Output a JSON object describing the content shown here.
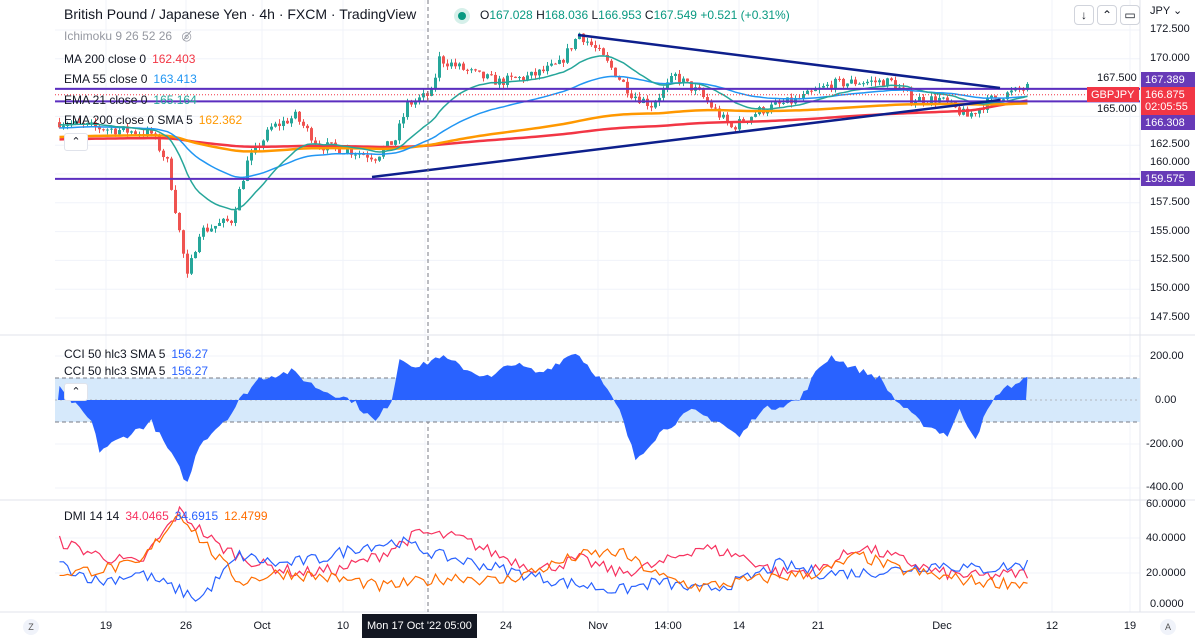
{
  "header": {
    "title": "British Pound / Japanese Yen · 4h · FXCM · TradingView",
    "open_label": "O",
    "open": "167.028",
    "high_label": "H",
    "high": "168.036",
    "low_label": "L",
    "low": "166.953",
    "close_label": "C",
    "close": "167.549",
    "change": "+0.521 (+0.31%)"
  },
  "indicators": [
    {
      "label": "Ichimoku 9 26 52 26",
      "value": ""
    },
    {
      "label": "MA 200 close 0",
      "value": "162.403",
      "color": "#f23645"
    },
    {
      "label": "EMA 55 close 0",
      "value": "163.413",
      "color": "#2196f3"
    },
    {
      "label": "EMA 21 close 0",
      "value": "165.164",
      "color": "#26a69a"
    },
    {
      "label": "EMA 200 close 0 SMA 5",
      "value": "162.362",
      "color": "#ff9800"
    }
  ],
  "cci": {
    "label": "CCI 50 hlc3 SMA 5",
    "value": "156.27",
    "label2": "CCI 50 hlc3 SMA 5",
    "value2": "156.27",
    "axis": [
      "200.00",
      "0.00",
      "-200.00",
      "-400.00"
    ]
  },
  "dmi": {
    "label": "DMI 14 14",
    "plus": "34.0465",
    "minus": "34.6915",
    "adx": "12.4799",
    "axis": [
      "60.0000",
      "40.0000",
      "20.0000",
      "0.0000"
    ]
  },
  "price_axis": {
    "currency": "JPY",
    "ticks": [
      "172.500",
      "170.000",
      "167.500",
      "165.000",
      "162.500",
      "160.000",
      "157.500",
      "155.000",
      "152.500",
      "150.000",
      "147.500"
    ],
    "badges": {
      "upper": "167.389",
      "last": "166.875",
      "countdown": "02:05:55",
      "lower": "166.308",
      "support": "159.575",
      "symbol": "GBPJPY"
    }
  },
  "time_axis": {
    "labels": [
      "19",
      "26",
      "Oct",
      "10",
      "24",
      "Nov",
      "14:00",
      "14",
      "21",
      "Dec",
      "12",
      "19"
    ],
    "crosshair": "Mon 17 Oct '22   05:00",
    "left_btn": "Z",
    "right_btn": "A"
  },
  "toolbar": {
    "down": "↓",
    "collapse": "⌃",
    "fullscreen": "▭"
  },
  "colors": {
    "up": "#26a69a",
    "down": "#ef5350",
    "level": "#5b2ebf",
    "trend": "#0d1f8c",
    "cci": "#2962ff",
    "cci_band": "#d6e9fb"
  },
  "chart_data": {
    "type": "candlestick",
    "timeframe": "4h",
    "ylim": [
      147.5,
      172.5
    ],
    "price_anchors": [
      [
        0,
        164.5
      ],
      [
        10,
        164
      ],
      [
        23,
        163.5
      ],
      [
        27,
        161
      ],
      [
        32,
        151
      ],
      [
        35,
        155
      ],
      [
        43,
        156
      ],
      [
        47,
        161
      ],
      [
        53,
        164
      ],
      [
        59,
        165
      ],
      [
        65,
        162.5
      ],
      [
        73,
        162
      ],
      [
        79,
        161.5
      ],
      [
        84,
        163
      ],
      [
        87,
        166
      ],
      [
        93,
        167
      ],
      [
        95,
        170
      ],
      [
        105,
        168.5
      ],
      [
        110,
        168
      ],
      [
        118,
        168.5
      ],
      [
        125,
        169.5
      ],
      [
        130,
        172.2
      ],
      [
        135,
        170.5
      ],
      [
        143,
        167
      ],
      [
        148,
        166
      ],
      [
        154,
        168.5
      ],
      [
        160,
        167
      ],
      [
        168,
        164
      ],
      [
        175,
        165.5
      ],
      [
        185,
        166.5
      ],
      [
        193,
        167.8
      ],
      [
        200,
        168
      ],
      [
        208,
        168
      ],
      [
        213,
        166.5
      ],
      [
        220,
        166.5
      ],
      [
        227,
        165
      ],
      [
        233,
        166.5
      ],
      [
        242,
        167.5
      ]
    ],
    "levels": [
      167.389,
      166.308,
      159.575
    ],
    "cci_ylim": [
      -430,
      240
    ],
    "cci_band": [
      -100,
      100
    ],
    "cci_anchors": [
      [
        0,
        50
      ],
      [
        8,
        -100
      ],
      [
        10,
        -230
      ],
      [
        15,
        -180
      ],
      [
        23,
        -100
      ],
      [
        28,
        -250
      ],
      [
        32,
        -380
      ],
      [
        35,
        -200
      ],
      [
        43,
        -60
      ],
      [
        45,
        0
      ],
      [
        50,
        100
      ],
      [
        58,
        130
      ],
      [
        65,
        50
      ],
      [
        73,
        0
      ],
      [
        79,
        -100
      ],
      [
        83,
        0
      ],
      [
        85,
        190
      ],
      [
        90,
        150
      ],
      [
        95,
        200
      ],
      [
        103,
        130
      ],
      [
        108,
        100
      ],
      [
        113,
        170
      ],
      [
        120,
        120
      ],
      [
        129,
        220
      ],
      [
        135,
        100
      ],
      [
        140,
        -50
      ],
      [
        144,
        -270
      ],
      [
        150,
        -150
      ],
      [
        158,
        -50
      ],
      [
        165,
        -100
      ],
      [
        170,
        -170
      ],
      [
        175,
        -50
      ],
      [
        185,
        0
      ],
      [
        190,
        150
      ],
      [
        193,
        200
      ],
      [
        198,
        150
      ],
      [
        205,
        100
      ],
      [
        209,
        0
      ],
      [
        215,
        -100
      ],
      [
        222,
        -160
      ],
      [
        225,
        -50
      ],
      [
        229,
        -170
      ],
      [
        232,
        -50
      ],
      [
        235,
        40
      ],
      [
        242,
        100
      ]
    ],
    "dmi_ylim": [
      0,
      60
    ],
    "dmi_series": [
      {
        "name": "+DI",
        "color": "#f7325f",
        "anchors": [
          [
            0,
            38
          ],
          [
            10,
            30
          ],
          [
            20,
            25
          ],
          [
            30,
            55
          ],
          [
            40,
            35
          ],
          [
            50,
            25
          ],
          [
            60,
            20
          ],
          [
            70,
            22
          ],
          [
            80,
            30
          ],
          [
            90,
            43
          ],
          [
            100,
            40
          ],
          [
            110,
            30
          ],
          [
            120,
            22
          ],
          [
            130,
            28
          ],
          [
            140,
            20
          ],
          [
            150,
            25
          ],
          [
            160,
            35
          ],
          [
            170,
            30
          ],
          [
            180,
            20
          ],
          [
            190,
            22
          ],
          [
            200,
            35
          ],
          [
            210,
            28
          ],
          [
            220,
            20
          ],
          [
            230,
            18
          ],
          [
            242,
            20
          ]
        ]
      },
      {
        "name": "-DI",
        "color": "#2962ff",
        "anchors": [
          [
            0,
            25
          ],
          [
            10,
            15
          ],
          [
            20,
            20
          ],
          [
            30,
            10
          ],
          [
            35,
            5
          ],
          [
            45,
            30
          ],
          [
            55,
            25
          ],
          [
            65,
            28
          ],
          [
            75,
            35
          ],
          [
            85,
            38
          ],
          [
            95,
            30
          ],
          [
            105,
            25
          ],
          [
            115,
            20
          ],
          [
            125,
            15
          ],
          [
            140,
            10
          ],
          [
            150,
            15
          ],
          [
            160,
            10
          ],
          [
            170,
            15
          ],
          [
            180,
            25
          ],
          [
            190,
            20
          ],
          [
            200,
            20
          ],
          [
            210,
            22
          ],
          [
            220,
            25
          ],
          [
            230,
            22
          ],
          [
            242,
            25
          ]
        ]
      },
      {
        "name": "ADX",
        "color": "#ff6d00",
        "anchors": [
          [
            0,
            20
          ],
          [
            10,
            22
          ],
          [
            20,
            25
          ],
          [
            30,
            55
          ],
          [
            35,
            40
          ],
          [
            45,
            15
          ],
          [
            55,
            20
          ],
          [
            65,
            18
          ],
          [
            75,
            15
          ],
          [
            80,
            12
          ],
          [
            90,
            15
          ],
          [
            100,
            18
          ],
          [
            110,
            15
          ],
          [
            120,
            22
          ],
          [
            130,
            30
          ],
          [
            140,
            32
          ],
          [
            150,
            18
          ],
          [
            160,
            12
          ],
          [
            170,
            15
          ],
          [
            180,
            18
          ],
          [
            190,
            20
          ],
          [
            200,
            30
          ],
          [
            210,
            22
          ],
          [
            220,
            18
          ],
          [
            230,
            15
          ],
          [
            242,
            14
          ]
        ]
      }
    ]
  }
}
